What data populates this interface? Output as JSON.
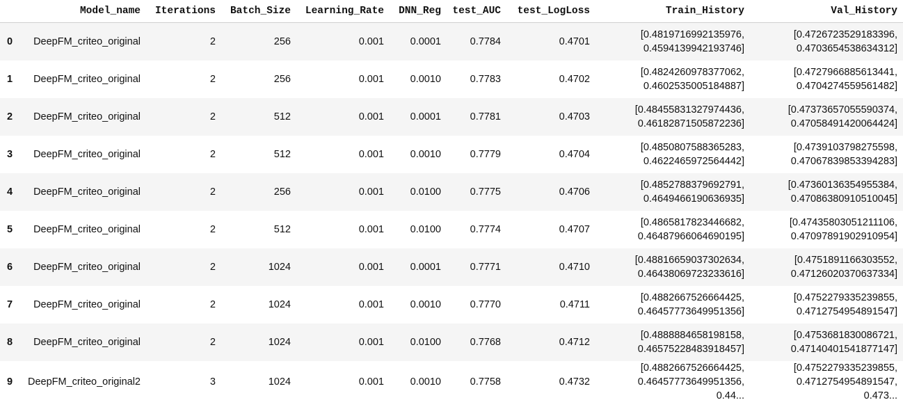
{
  "table": {
    "columns": [
      "",
      "Model_name",
      "Iterations",
      "Batch_Size",
      "Learning_Rate",
      "DNN_Reg",
      "test_AUC",
      "test_LogLoss",
      "Train_History",
      "Val_History"
    ],
    "rows": [
      {
        "index": "0",
        "model": "DeepFM_criteo_original",
        "iterations": "2",
        "batch": "256",
        "lr": "0.001",
        "reg": "0.0001",
        "auc": "0.7784",
        "logloss": "0.4701",
        "train": [
          "[0.4819716992135976,",
          "0.4594139942193746]"
        ],
        "val": [
          "[0.4726723529183396,",
          "0.4703654538634312]"
        ]
      },
      {
        "index": "1",
        "model": "DeepFM_criteo_original",
        "iterations": "2",
        "batch": "256",
        "lr": "0.001",
        "reg": "0.0010",
        "auc": "0.7783",
        "logloss": "0.4702",
        "train": [
          "[0.4824260978377062,",
          "0.4602535005184887]"
        ],
        "val": [
          "[0.4727966885613441,",
          "0.4704274559561482]"
        ]
      },
      {
        "index": "2",
        "model": "DeepFM_criteo_original",
        "iterations": "2",
        "batch": "512",
        "lr": "0.001",
        "reg": "0.0001",
        "auc": "0.7781",
        "logloss": "0.4703",
        "train": [
          "[0.48455831327974436,",
          "0.46182871505872236]"
        ],
        "val": [
          "[0.47373657055590374,",
          "0.47058491420064424]"
        ]
      },
      {
        "index": "3",
        "model": "DeepFM_criteo_original",
        "iterations": "2",
        "batch": "512",
        "lr": "0.001",
        "reg": "0.0010",
        "auc": "0.7779",
        "logloss": "0.4704",
        "train": [
          "[0.4850807588365283,",
          "0.4622465972564442]"
        ],
        "val": [
          "[0.4739103798275598,",
          "0.47067839853394283]"
        ]
      },
      {
        "index": "4",
        "model": "DeepFM_criteo_original",
        "iterations": "2",
        "batch": "256",
        "lr": "0.001",
        "reg": "0.0100",
        "auc": "0.7775",
        "logloss": "0.4706",
        "train": [
          "[0.4852788379692791,",
          "0.4649466190636935]"
        ],
        "val": [
          "[0.47360136354955384,",
          "0.47086380910510045]"
        ]
      },
      {
        "index": "5",
        "model": "DeepFM_criteo_original",
        "iterations": "2",
        "batch": "512",
        "lr": "0.001",
        "reg": "0.0100",
        "auc": "0.7774",
        "logloss": "0.4707",
        "train": [
          "[0.4865817823446682,",
          "0.46487966064690195]"
        ],
        "val": [
          "[0.47435803051211106,",
          "0.47097891902910954]"
        ]
      },
      {
        "index": "6",
        "model": "DeepFM_criteo_original",
        "iterations": "2",
        "batch": "1024",
        "lr": "0.001",
        "reg": "0.0001",
        "auc": "0.7771",
        "logloss": "0.4710",
        "train": [
          "[0.48816659037302634,",
          "0.46438069723233616]"
        ],
        "val": [
          "[0.4751891166303552,",
          "0.47126020370637334]"
        ]
      },
      {
        "index": "7",
        "model": "DeepFM_criteo_original",
        "iterations": "2",
        "batch": "1024",
        "lr": "0.001",
        "reg": "0.0010",
        "auc": "0.7770",
        "logloss": "0.4711",
        "train": [
          "[0.4882667526664425,",
          "0.46457773649951356]"
        ],
        "val": [
          "[0.4752279335239855,",
          "0.4712754954891547]"
        ]
      },
      {
        "index": "8",
        "model": "DeepFM_criteo_original",
        "iterations": "2",
        "batch": "1024",
        "lr": "0.001",
        "reg": "0.0100",
        "auc": "0.7768",
        "logloss": "0.4712",
        "train": [
          "[0.4888884658198158,",
          "0.46575228483918457]"
        ],
        "val": [
          "[0.4753681830086721,",
          "0.47140401541877147]"
        ]
      },
      {
        "index": "9",
        "model": "DeepFM_criteo_original2",
        "iterations": "3",
        "batch": "1024",
        "lr": "0.001",
        "reg": "0.0010",
        "auc": "0.7758",
        "logloss": "0.4732",
        "train": [
          "[0.4882667526664425,",
          "0.46457773649951356,",
          "0.44..."
        ],
        "val": [
          "[0.4752279335239855,",
          "0.4712754954891547,",
          "0.473..."
        ]
      }
    ]
  }
}
